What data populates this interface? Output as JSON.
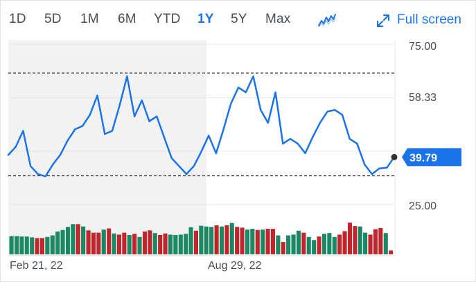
{
  "toolbar": {
    "ranges": [
      "1D",
      "5D",
      "1M",
      "6M",
      "YTD",
      "1Y",
      "5Y",
      "Max"
    ],
    "active_range": "1Y",
    "chart_type_icon": "line-chart-icon",
    "fullscreen_icon": "expand-arrows-icon",
    "fullscreen_label": "Full screen"
  },
  "colors": {
    "line": "#1a73e8",
    "volume_up": "#1b8763",
    "volume_down": "#c0272d",
    "shade": "#f2f2f2",
    "grid": "#e6e6e6",
    "price_badge": "#1a73e8"
  },
  "chart_data": {
    "type": "line",
    "y_ticks": [
      "75.00",
      "58.33",
      "25.00"
    ],
    "ylim": [
      25,
      75
    ],
    "x_tick_labels": [
      "Feb 21, 22",
      "Aug 29, 22"
    ],
    "current_price": "39.79",
    "reference_lines": [
      66,
      34
    ],
    "series": [
      {
        "values": [
          40.5,
          43,
          48,
          37,
          34.5,
          33.8,
          37.5,
          40.5,
          45,
          48.5,
          49.5,
          53,
          59,
          47,
          48,
          56,
          65,
          52.5,
          57.5,
          51,
          52.5,
          46,
          39.5,
          37,
          34.5,
          37,
          41.5,
          46.5,
          41,
          48.5,
          56.5,
          61.5,
          60,
          65,
          54.5,
          50.5,
          60,
          44,
          45.5,
          44,
          41,
          46,
          50.5,
          54,
          54.5,
          53,
          45.5,
          44,
          37.5,
          34.5,
          36.3,
          36.5,
          39.8
        ]
      }
    ],
    "volume": {
      "values": [
        0.47,
        0.47,
        0.46,
        0.46,
        0.44,
        0.42,
        0.42,
        0.45,
        0.49,
        0.59,
        0.63,
        0.71,
        0.78,
        0.78,
        0.72,
        0.62,
        0.56,
        0.56,
        0.64,
        0.67,
        0.54,
        0.51,
        0.56,
        0.5,
        0.53,
        0.45,
        0.59,
        0.62,
        0.55,
        0.5,
        0.54,
        0.51,
        0.5,
        0.51,
        0.53,
        0.7,
        0.61,
        0.74,
        0.72,
        0.71,
        0.75,
        0.72,
        0.75,
        0.81,
        0.71,
        0.69,
        0.64,
        0.66,
        0.63,
        0.64,
        0.66,
        0.66,
        0.49,
        0.32,
        0.49,
        0.51,
        0.61,
        0.56,
        0.45,
        0.37,
        0.46,
        0.53,
        0.55,
        0.45,
        0.51,
        0.6,
        0.82,
        0.73,
        0.72,
        0.56,
        0.51,
        0.65,
        0.68,
        0.55,
        0.1
      ],
      "up": [
        true,
        true,
        true,
        true,
        true,
        false,
        false,
        true,
        true,
        true,
        true,
        true,
        true,
        false,
        true,
        false,
        false,
        false,
        true,
        false,
        true,
        false,
        false,
        true,
        false,
        true,
        false,
        false,
        true,
        false,
        false,
        true,
        true,
        true,
        true,
        true,
        false,
        true,
        true,
        true,
        false,
        true,
        false,
        true,
        false,
        false,
        true,
        true,
        false,
        true,
        false,
        false,
        true,
        false,
        true,
        true,
        true,
        false,
        true,
        true,
        false,
        true,
        true,
        true,
        false,
        false,
        false,
        false,
        true,
        true,
        false,
        false,
        false,
        true,
        false
      ]
    }
  }
}
